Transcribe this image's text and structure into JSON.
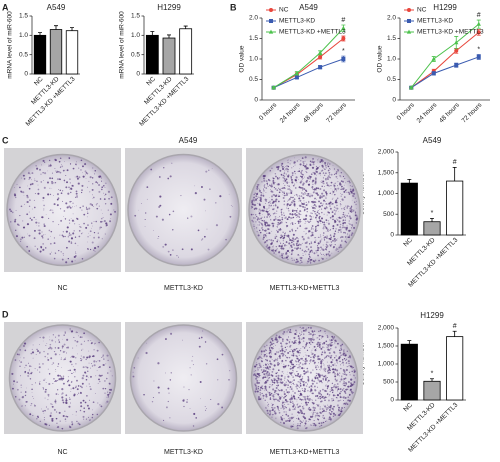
{
  "panels": [
    "A",
    "B",
    "C",
    "D"
  ],
  "chart_data": [
    {
      "type": "bar",
      "title": "A549",
      "ylabel": "mRNA level of miR-600",
      "categories": [
        "NC",
        "METTL3-KD",
        "METTL3-KD +METTL3"
      ],
      "values": [
        1.0,
        1.15,
        1.12
      ],
      "errors": [
        0.07,
        0.1,
        0.08
      ],
      "colors": [
        "#000000",
        "#a6a6a6",
        "#ffffff"
      ],
      "ylim": [
        0,
        1.5
      ],
      "yticks": [
        0,
        0.5,
        {
          "value": 1,
          "label": "1.0"
        },
        1.5
      ]
    },
    {
      "type": "bar",
      "title": "H1299",
      "ylabel": "mRNA level of miR-600",
      "categories": [
        "NC",
        "METTL3-KD",
        "METTL3-KD +METTL3"
      ],
      "values": [
        1.0,
        0.93,
        1.17
      ],
      "errors": [
        0.1,
        0.08,
        0.07
      ],
      "colors": [
        "#000000",
        "#a6a6a6",
        "#ffffff"
      ],
      "ylim": [
        0,
        1.5
      ],
      "yticks": [
        0,
        0.5,
        {
          "value": 1,
          "label": "1.0"
        },
        1.5
      ]
    },
    {
      "type": "line",
      "title": "A549",
      "ylabel": "OD value",
      "categories": [
        "0 hours",
        "24 hours",
        "48 hours",
        "72 hours"
      ],
      "series": [
        {
          "name": "NC",
          "color": "#e8463c",
          "marker": "circle",
          "values": [
            0.3,
            0.62,
            1.05,
            1.5
          ],
          "errors": [
            0.03,
            0.04,
            0.05,
            0.06
          ]
        },
        {
          "name": "METTL3-KD",
          "color": "#3a5bb0",
          "marker": "square",
          "values": [
            0.3,
            0.55,
            0.8,
            1.0
          ],
          "errors": [
            0.03,
            0.03,
            0.04,
            0.07
          ]
        },
        {
          "name": "METTL3-KD +METTL3",
          "color": "#4cc24c",
          "marker": "triangle",
          "values": [
            0.3,
            0.65,
            1.15,
            1.75
          ],
          "errors": [
            0.03,
            0.04,
            0.05,
            0.08
          ]
        }
      ],
      "annotations": [
        {
          "category": 3,
          "series": 2,
          "text": "#"
        },
        {
          "category": 3,
          "series": 1,
          "text": "*"
        }
      ],
      "ylim": [
        0,
        2
      ],
      "yticks": [
        0,
        0.5,
        {
          "value": 1,
          "label": "1.0"
        },
        1.5,
        {
          "value": 2,
          "label": "2.0"
        }
      ]
    },
    {
      "type": "line",
      "title": "H1299",
      "ylabel": "OD value",
      "categories": [
        "0 hours",
        "24 hours",
        "48 hours",
        "72 hours"
      ],
      "series": [
        {
          "name": "NC",
          "color": "#e8463c",
          "marker": "circle",
          "values": [
            0.3,
            0.7,
            1.2,
            1.65
          ],
          "errors": [
            0.03,
            0.05,
            0.06,
            0.07
          ]
        },
        {
          "name": "METTL3-KD",
          "color": "#3a5bb0",
          "marker": "square",
          "values": [
            0.3,
            0.65,
            0.85,
            1.05
          ],
          "errors": [
            0.03,
            0.04,
            0.05,
            0.06
          ]
        },
        {
          "name": "METTL3-KD +METTL3",
          "color": "#4cc24c",
          "marker": "triangle",
          "values": [
            0.3,
            1.0,
            1.4,
            1.85
          ],
          "errors": [
            0.03,
            0.06,
            0.15,
            0.1
          ]
        }
      ],
      "annotations": [
        {
          "category": 3,
          "series": 2,
          "text": "#"
        },
        {
          "category": 3,
          "series": 1,
          "text": "*"
        }
      ],
      "ylim": [
        0,
        2
      ],
      "yticks": [
        0,
        0.5,
        {
          "value": 1,
          "label": "1.0"
        },
        1.5,
        {
          "value": 2,
          "label": "2.0"
        }
      ]
    },
    {
      "type": "bar",
      "title": "A549",
      "ylabel": "Colony number",
      "categories": [
        "NC",
        "METTL3-KD",
        "METTL3-KD +METTL3"
      ],
      "values": [
        1250,
        320,
        1300
      ],
      "errors": [
        90,
        80,
        330
      ],
      "colors": [
        "#000000",
        "#a6a6a6",
        "#ffffff"
      ],
      "annotations": [
        {
          "category": 1,
          "text": "*"
        },
        {
          "category": 2,
          "text": "#"
        }
      ],
      "ylim": [
        0,
        2000
      ],
      "yticks": [
        0,
        500,
        {
          "value": 1000,
          "label": "1,000"
        },
        {
          "value": 1500,
          "label": "1,500"
        },
        {
          "value": 2000,
          "label": "2,000"
        }
      ]
    },
    {
      "type": "bar",
      "title": "H1299",
      "ylabel": "Colony number",
      "categories": [
        "NC",
        "METTL3-KD",
        "METTL3-KD +METTL3"
      ],
      "values": [
        1550,
        520,
        1760
      ],
      "errors": [
        100,
        70,
        150
      ],
      "colors": [
        "#000000",
        "#a6a6a6",
        "#ffffff"
      ],
      "annotations": [
        {
          "category": 1,
          "text": "*"
        },
        {
          "category": 2,
          "text": "#"
        }
      ],
      "ylim": [
        0,
        2000
      ],
      "yticks": [
        0,
        500,
        {
          "value": 1000,
          "label": "1,000"
        },
        {
          "value": 1500,
          "label": "1,500"
        },
        {
          "value": 2000,
          "label": "2,000"
        }
      ]
    }
  ],
  "photos": [
    {
      "title": "A549",
      "labels": [
        "NC",
        "METTL3-KD",
        "METTL3-KD+METTL3"
      ]
    },
    {
      "labels": [
        "NC",
        "METTL3-KD",
        "METTL3-KD+METTL3"
      ]
    }
  ]
}
